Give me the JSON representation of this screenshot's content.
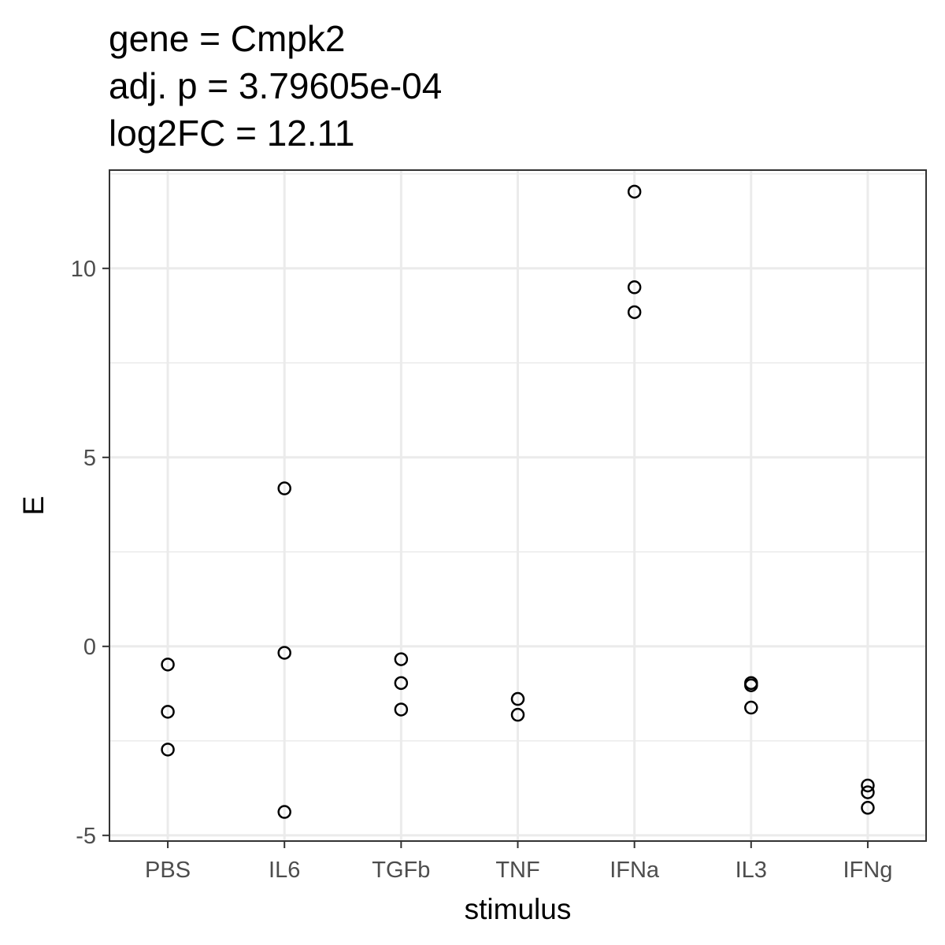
{
  "chart_data": {
    "type": "scatter",
    "title_lines": [
      "gene = Cmpk2",
      "adj. p = 3.79605e-04",
      "log2FC = 12.11"
    ],
    "xlabel": "stimulus",
    "ylabel": "E",
    "categories": [
      "PBS",
      "IL6",
      "TGFb",
      "TNF",
      "IFNa",
      "IL3",
      "IFNg"
    ],
    "yticks": [
      -5,
      0,
      5,
      10
    ],
    "ylim": [
      -5.15,
      12.6
    ],
    "grid": true,
    "points": [
      {
        "category": "PBS",
        "values": [
          -0.48,
          -1.73,
          -2.73
        ]
      },
      {
        "category": "IL6",
        "values": [
          4.18,
          -0.17,
          -4.38
        ]
      },
      {
        "category": "TGFb",
        "values": [
          -0.34,
          -0.97,
          -1.67
        ]
      },
      {
        "category": "TNF",
        "values": [
          -1.39,
          -1.81
        ]
      },
      {
        "category": "IFNa",
        "values": [
          12.03,
          9.5,
          8.84
        ]
      },
      {
        "category": "IL3",
        "values": [
          -0.97,
          -1.03,
          -1.62
        ]
      },
      {
        "category": "IFNg",
        "values": [
          -3.68,
          -3.86,
          -4.27
        ]
      }
    ],
    "colors": {
      "point_stroke": "#000000",
      "grid": "#ebebeb",
      "panel_border": "#333333"
    }
  }
}
